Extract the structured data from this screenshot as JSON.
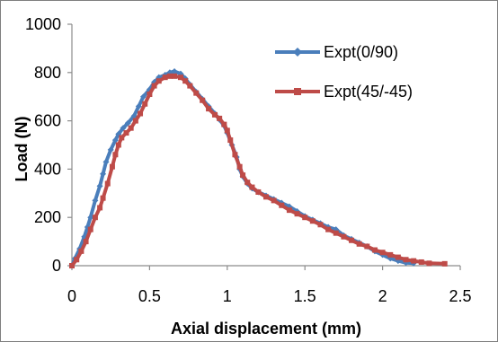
{
  "chart_data": {
    "type": "line",
    "title": "",
    "xlabel": "Axial displacement (mm)",
    "ylabel": "Load (N)",
    "xlim": [
      0,
      2.5
    ],
    "ylim": [
      0,
      1000
    ],
    "x_ticks": [
      0,
      0.5,
      1,
      1.5,
      2,
      2.5
    ],
    "x_tick_labels": [
      "0",
      "0.5",
      "1",
      "1.5",
      "2",
      "2.5"
    ],
    "y_ticks": [
      0,
      200,
      400,
      600,
      800,
      1000
    ],
    "y_tick_labels": [
      "0",
      "200",
      "400",
      "600",
      "800",
      "1000"
    ],
    "grid": false,
    "legend_position": "top-right",
    "series": [
      {
        "name": "Expt(0/90)",
        "color": "#4a7ebb",
        "marker": "diamond",
        "points": [
          [
            0,
            0
          ],
          [
            0.02,
            30
          ],
          [
            0.05,
            70
          ],
          [
            0.08,
            120
          ],
          [
            0.1,
            160
          ],
          [
            0.12,
            200
          ],
          [
            0.15,
            270
          ],
          [
            0.18,
            330
          ],
          [
            0.2,
            380
          ],
          [
            0.22,
            430
          ],
          [
            0.25,
            480
          ],
          [
            0.28,
            520
          ],
          [
            0.3,
            545
          ],
          [
            0.33,
            570
          ],
          [
            0.36,
            590
          ],
          [
            0.4,
            620
          ],
          [
            0.43,
            660
          ],
          [
            0.46,
            700
          ],
          [
            0.5,
            730
          ],
          [
            0.53,
            760
          ],
          [
            0.56,
            780
          ],
          [
            0.6,
            790
          ],
          [
            0.63,
            800
          ],
          [
            0.66,
            805
          ],
          [
            0.7,
            795
          ],
          [
            0.73,
            775
          ],
          [
            0.76,
            750
          ],
          [
            0.8,
            720
          ],
          [
            0.84,
            690
          ],
          [
            0.88,
            660
          ],
          [
            0.92,
            630
          ],
          [
            0.95,
            605
          ],
          [
            0.98,
            580
          ],
          [
            1.0,
            550
          ],
          [
            1.03,
            500
          ],
          [
            1.06,
            450
          ],
          [
            1.08,
            400
          ],
          [
            1.1,
            370
          ],
          [
            1.13,
            340
          ],
          [
            1.16,
            320
          ],
          [
            1.2,
            305
          ],
          [
            1.25,
            290
          ],
          [
            1.3,
            275
          ],
          [
            1.35,
            260
          ],
          [
            1.4,
            245
          ],
          [
            1.45,
            225
          ],
          [
            1.5,
            205
          ],
          [
            1.55,
            190
          ],
          [
            1.6,
            175
          ],
          [
            1.65,
            160
          ],
          [
            1.7,
            150
          ],
          [
            1.75,
            125
          ],
          [
            1.8,
            110
          ],
          [
            1.85,
            95
          ],
          [
            1.9,
            80
          ],
          [
            1.95,
            60
          ],
          [
            2.0,
            45
          ],
          [
            2.05,
            30
          ],
          [
            2.1,
            20
          ],
          [
            2.15,
            12
          ],
          [
            2.2,
            10
          ]
        ]
      },
      {
        "name": "Expt(45/-45)",
        "color": "#be4b48",
        "marker": "square",
        "points": [
          [
            0,
            0
          ],
          [
            0.03,
            25
          ],
          [
            0.06,
            60
          ],
          [
            0.09,
            100
          ],
          [
            0.12,
            150
          ],
          [
            0.15,
            200
          ],
          [
            0.18,
            240
          ],
          [
            0.2,
            280
          ],
          [
            0.23,
            340
          ],
          [
            0.26,
            410
          ],
          [
            0.28,
            460
          ],
          [
            0.3,
            500
          ],
          [
            0.32,
            530
          ],
          [
            0.35,
            550
          ],
          [
            0.38,
            570
          ],
          [
            0.41,
            600
          ],
          [
            0.44,
            630
          ],
          [
            0.47,
            670
          ],
          [
            0.5,
            710
          ],
          [
            0.53,
            745
          ],
          [
            0.56,
            765
          ],
          [
            0.6,
            780
          ],
          [
            0.63,
            785
          ],
          [
            0.66,
            785
          ],
          [
            0.7,
            780
          ],
          [
            0.73,
            765
          ],
          [
            0.76,
            745
          ],
          [
            0.8,
            715
          ],
          [
            0.84,
            685
          ],
          [
            0.88,
            650
          ],
          [
            0.92,
            625
          ],
          [
            0.95,
            610
          ],
          [
            0.98,
            585
          ],
          [
            1.0,
            560
          ],
          [
            1.02,
            520
          ],
          [
            1.05,
            460
          ],
          [
            1.08,
            410
          ],
          [
            1.1,
            375
          ],
          [
            1.13,
            345
          ],
          [
            1.16,
            325
          ],
          [
            1.2,
            305
          ],
          [
            1.25,
            285
          ],
          [
            1.3,
            270
          ],
          [
            1.35,
            250
          ],
          [
            1.4,
            230
          ],
          [
            1.45,
            215
          ],
          [
            1.5,
            200
          ],
          [
            1.55,
            185
          ],
          [
            1.6,
            170
          ],
          [
            1.65,
            150
          ],
          [
            1.7,
            135
          ],
          [
            1.75,
            120
          ],
          [
            1.8,
            105
          ],
          [
            1.85,
            90
          ],
          [
            1.9,
            80
          ],
          [
            1.95,
            65
          ],
          [
            2.0,
            55
          ],
          [
            2.05,
            45
          ],
          [
            2.1,
            35
          ],
          [
            2.15,
            25
          ],
          [
            2.2,
            20
          ],
          [
            2.25,
            15
          ],
          [
            2.3,
            10
          ],
          [
            2.4,
            8
          ]
        ]
      }
    ]
  }
}
